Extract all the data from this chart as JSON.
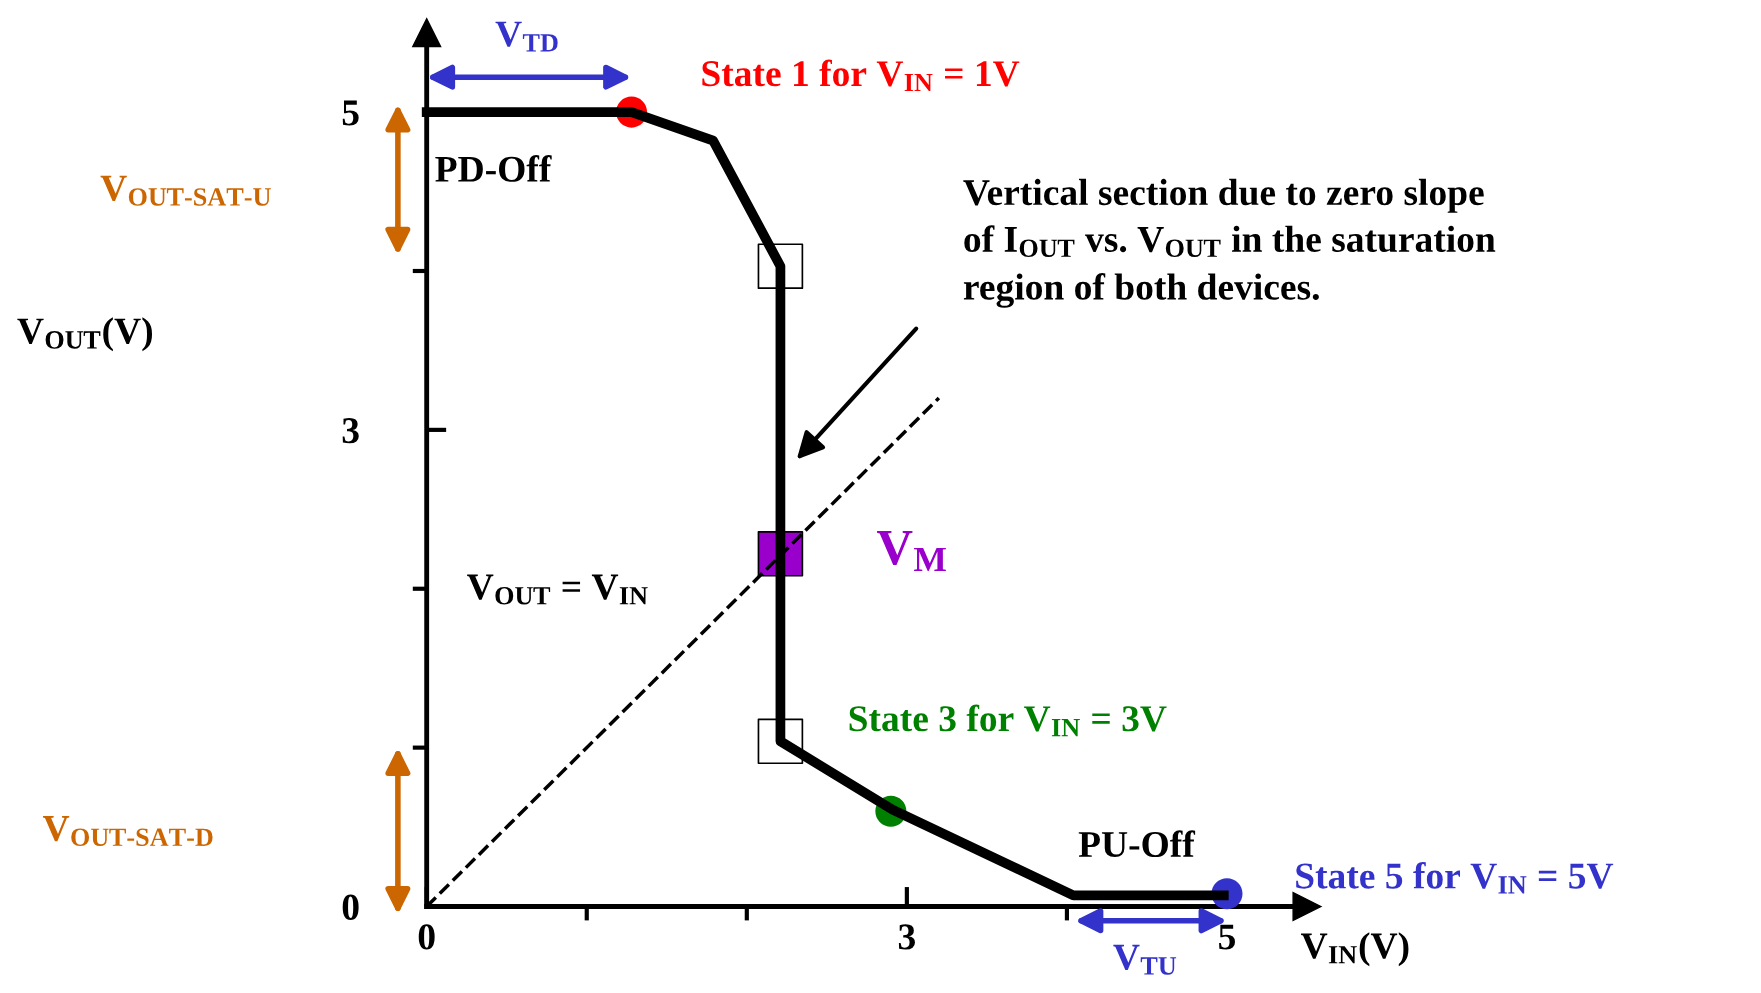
{
  "chart_data": {
    "type": "line",
    "xlabel": "V$_{IN}$(V)",
    "xlim": [
      0,
      5.5
    ],
    "ylim": [
      0,
      5.5
    ],
    "xticks": [
      0,
      {
        "value": 1,
        "label": null
      },
      {
        "value": 2,
        "label": null
      },
      3,
      {
        "value": 4,
        "label": null
      },
      5
    ],
    "yticks": [
      0,
      {
        "value": 1,
        "label": null
      },
      {
        "value": 2,
        "label": null
      },
      3,
      {
        "value": 4,
        "label": null
      },
      5
    ],
    "grid": false,
    "series": [
      {
        "color": "#000000",
        "line_style": "solid",
        "marker": "none",
        "x": [
          0,
          1.28,
          1.79,
          2.21,
          2.21,
          2.91,
          4.04,
          4.98
        ],
        "values": [
          5,
          5,
          4.82,
          4.03,
          1.04,
          0.61,
          0.07,
          0.07
        ]
      },
      {
        "type": "line",
        "color": "#000000",
        "line_style": "dashed",
        "marker": "none",
        "x": [
          0,
          3.2
        ],
        "values": [
          0,
          3.2
        ]
      },
      {
        "type": "scatter",
        "marker": "circle",
        "x": [
          1.28,
          2.9,
          5.0
        ],
        "values": [
          5,
          0.6,
          0.08
        ],
        "colors": [
          "#ff0000",
          "#008000",
          "#3333cc"
        ]
      },
      {
        "type": "scatter",
        "marker": "square",
        "x": [
          2.21,
          2.21,
          2.21
        ],
        "values": [
          4.03,
          2.22,
          1.04
        ],
        "colors": [
          "#ffffff",
          "#9900cc",
          "#ffffff"
        ]
      }
    ],
    "annotations": [
      {
        "text": "State 1 for V$_{IN}$ = 1V",
        "x": 1.28,
        "y": 5
      },
      {
        "text": "State 3 for V$_{IN}$ = 3V",
        "x": 2.9,
        "y": 0.6
      },
      {
        "text": "State 5 for V$_{IN}$ = 5V",
        "x": 5,
        "y": 0.08
      },
      {
        "text": "V$_{M}$",
        "x": 2.21,
        "y": 2.22
      },
      "Vertical section due to zero slope\nof I$_{OUT}$ vs. V$_{OUT}$ in the saturation\nregion of both devices.",
      "PD-Off",
      "PU-Off",
      "V$_{OUT}$ = V$_{IN}$",
      "V$_{TD}$",
      "V$_{TU}$",
      "V$_{OUT-SAT-U}$",
      "V$_{OUT-SAT-D}$",
      "V$_{OUT}$(V)"
    ]
  }
}
